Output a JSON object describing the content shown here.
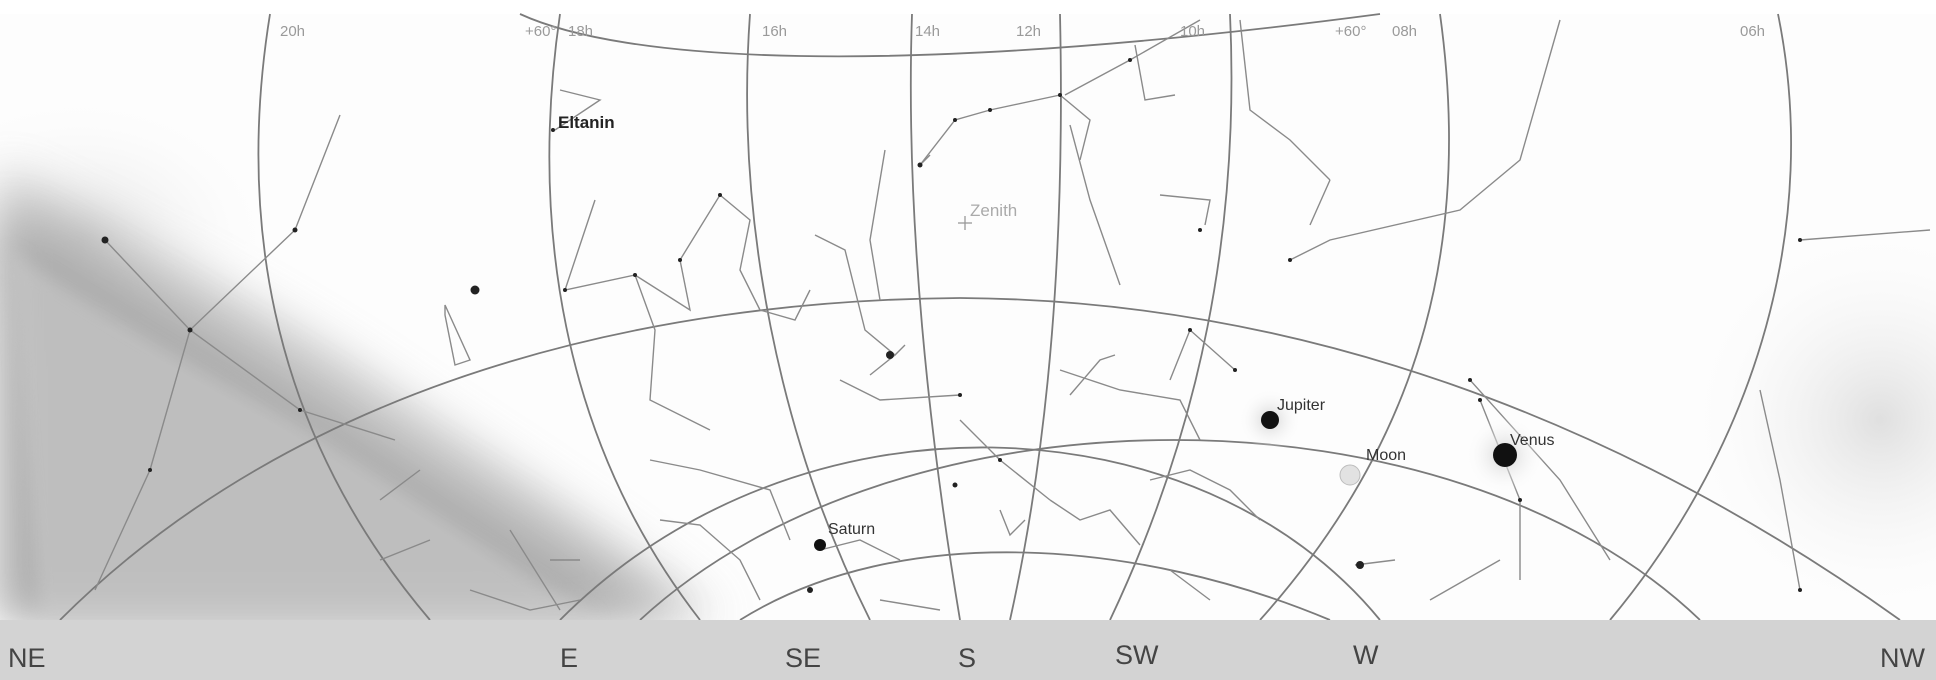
{
  "ra_labels": [
    "20h",
    "+60°",
    "18h",
    "16h",
    "14h",
    "12h",
    "10h",
    "+60°",
    "08h",
    "06h"
  ],
  "stars": {
    "eltanin": "Eltanin",
    "zenith": "Zenith",
    "jupiter": "Jupiter",
    "moon": "Moon",
    "venus": "Venus",
    "saturn": "Saturn"
  },
  "compass": [
    "NE",
    "E",
    "SE",
    "S",
    "SW",
    "W",
    "NW"
  ],
  "colors": {
    "sky": "#ffffff",
    "grid": "#7a7a7a",
    "constellation": "#8a8a8a",
    "horizon_band": "#d3d3d3",
    "milky_way": "#9a9a9a"
  }
}
